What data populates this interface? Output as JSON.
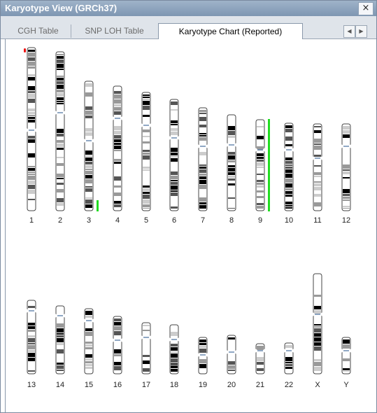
{
  "window": {
    "title": "Karyotype View (GRCh37)",
    "close_label": "×"
  },
  "tabs": [
    {
      "label": "CGH Table",
      "active": false
    },
    {
      "label": "SNP LOH Table",
      "active": false
    },
    {
      "label": "Karyotype Chart (Reported)",
      "active": true
    }
  ],
  "tab_scroll": {
    "left_icon": "chevron-left-icon",
    "right_icon": "chevron-right-icon"
  },
  "chromosomes": [
    {
      "label": "1"
    },
    {
      "label": "2"
    },
    {
      "label": "3"
    },
    {
      "label": "4"
    },
    {
      "label": "5"
    },
    {
      "label": "6"
    },
    {
      "label": "7"
    },
    {
      "label": "8"
    },
    {
      "label": "9"
    },
    {
      "label": "10"
    },
    {
      "label": "11"
    },
    {
      "label": "12"
    },
    {
      "label": "13"
    },
    {
      "label": "14"
    },
    {
      "label": "15"
    },
    {
      "label": "16"
    },
    {
      "label": "17"
    },
    {
      "label": "18"
    },
    {
      "label": "19"
    },
    {
      "label": "20"
    },
    {
      "label": "21"
    },
    {
      "label": "22"
    },
    {
      "label": "X"
    },
    {
      "label": "Y"
    }
  ],
  "colors": {
    "gain": "#22dd22",
    "loss": "#ee1111",
    "acrocentric": "#6a8ab0"
  }
}
